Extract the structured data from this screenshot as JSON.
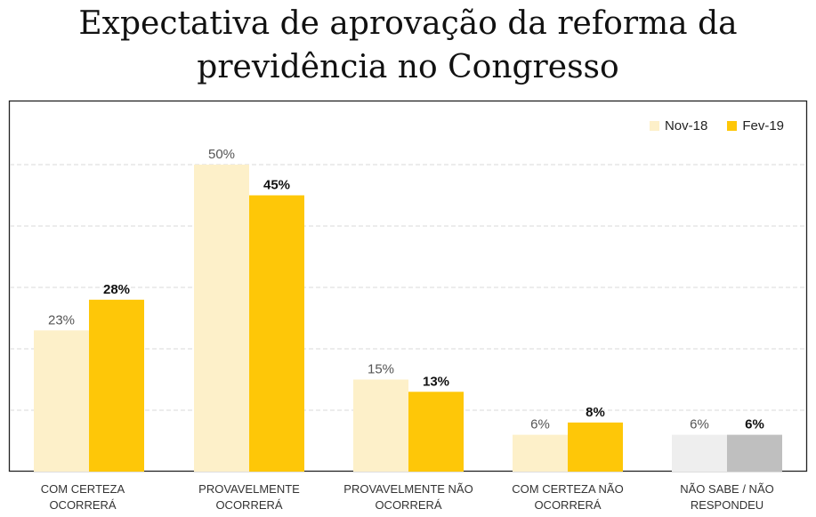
{
  "chart_data": {
    "type": "bar",
    "title": "Expectativa de aprovação da reforma da previdência no Congresso",
    "categories": [
      "COM CERTEZA OCORRERÁ",
      "PROVAVELMENTE OCORRERÁ",
      "PROVAVELMENTE NÃO OCORRERÁ",
      "COM CERTEZA NÃO OCORRERÁ",
      "NÃO SABE / NÃO RESPONDEU"
    ],
    "series": [
      {
        "name": "Nov-18",
        "values": [
          23,
          50,
          15,
          6,
          6
        ],
        "labels": [
          "23%",
          "50%",
          "15%",
          "6%",
          "6%"
        ],
        "color": "#fdf0c9"
      },
      {
        "name": "Fev-19",
        "values": [
          28,
          45,
          13,
          8,
          6
        ],
        "labels": [
          "28%",
          "45%",
          "13%",
          "8%",
          "6%"
        ],
        "color": "#fec708"
      }
    ],
    "special_colors": {
      "last_category_nov": "#eeeeee",
      "last_category_fev": "#bfbfbf"
    },
    "ylim": [
      0,
      50
    ],
    "grid": true,
    "legend_position": "top-right",
    "xlabel": "",
    "ylabel": ""
  }
}
